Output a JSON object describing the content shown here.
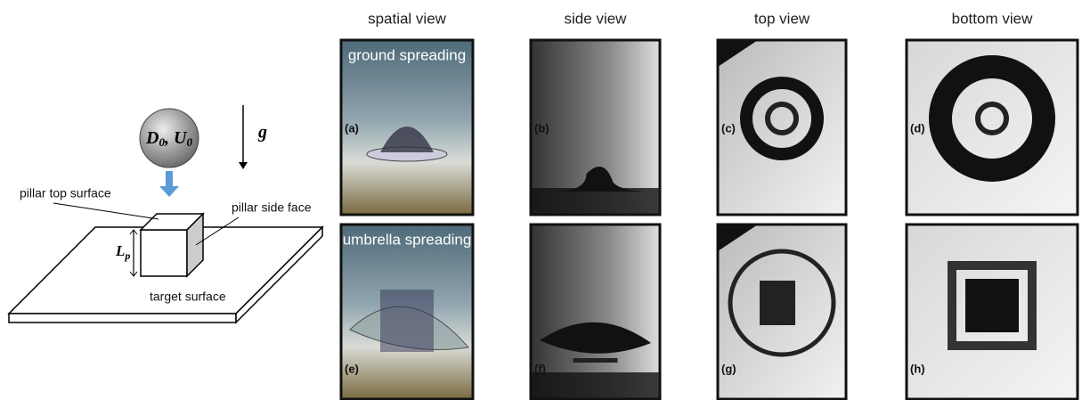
{
  "headers": [
    "spatial view",
    "side view",
    "top view",
    "bottom view"
  ],
  "rows": [
    {
      "caption": "ground spreading",
      "panels": [
        "(a)",
        "(b)",
        "(c)",
        "(d)"
      ]
    },
    {
      "caption": "umbrella spreading",
      "panels": [
        "(e)",
        "(f)",
        "(g)",
        "(h)"
      ]
    }
  ],
  "diagram": {
    "drop_label": [
      "D",
      "0",
      ", ",
      "U",
      "0"
    ],
    "gravity": "g",
    "pillar_top": "pillar top surface",
    "pillar_side": "pillar side face",
    "height_label": [
      "L",
      "p"
    ],
    "target": "target surface"
  }
}
